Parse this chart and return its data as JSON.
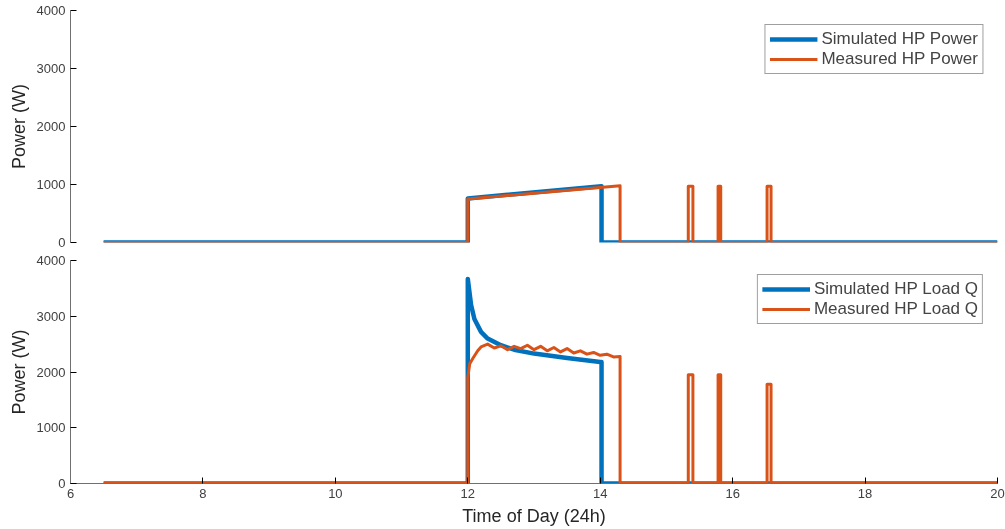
{
  "chart_data": [
    {
      "type": "line",
      "ylabel": "Power (W)",
      "xlim": [
        6,
        20
      ],
      "ylim": [
        0,
        4000
      ],
      "yticks": [
        0,
        1000,
        2000,
        3000,
        4000
      ],
      "tick_labels": "y",
      "grid": false,
      "legend": "top right",
      "line_style": "solid",
      "marker": "none",
      "series": [
        {
          "name": "Simulated HP Power",
          "color": "#0072bd",
          "x": [
            6.5,
            12.0,
            12.0,
            14.02,
            14.02,
            20.0
          ],
          "values": [
            0,
            0,
            760,
            970,
            0,
            0
          ]
        },
        {
          "name": "Measured HP Power",
          "color": "#d95319",
          "x": [
            6.5,
            12.0,
            12.0,
            14.3,
            14.3,
            15.33,
            15.33,
            15.4,
            15.4,
            15.78,
            15.78,
            15.82,
            15.82,
            16.52,
            16.52,
            16.58,
            16.58,
            20.0
          ],
          "values": [
            0,
            0,
            750,
            980,
            0,
            0,
            970,
            970,
            0,
            0,
            970,
            970,
            0,
            0,
            970,
            970,
            0,
            0
          ]
        }
      ]
    },
    {
      "type": "line",
      "xlabel": "Time of Day (24h)",
      "ylabel": "Power (W)",
      "xlim": [
        6,
        20
      ],
      "ylim": [
        0,
        4000
      ],
      "xticks": [
        6,
        8,
        10,
        12,
        14,
        16,
        18,
        20
      ],
      "yticks": [
        0,
        1000,
        2000,
        3000,
        4000
      ],
      "grid": false,
      "legend": "top right",
      "line_style": "solid",
      "marker": "none",
      "series": [
        {
          "name": "Simulated HP Load Q",
          "color": "#0072bd",
          "x": [
            6.5,
            12.0,
            12.0,
            12.05,
            12.1,
            12.2,
            12.3,
            12.5,
            12.7,
            13.0,
            13.5,
            14.0,
            14.02,
            14.02,
            20.0
          ],
          "values": [
            0,
            0,
            3670,
            3200,
            2950,
            2720,
            2600,
            2480,
            2400,
            2330,
            2250,
            2180,
            2180,
            0,
            0
          ]
        },
        {
          "name": "Measured HP Load Q",
          "color": "#d95319",
          "x": [
            6.5,
            12.0,
            12.0,
            12.03,
            12.08,
            12.15,
            12.2,
            12.3,
            12.4,
            12.5,
            12.6,
            12.7,
            12.8,
            12.9,
            13.0,
            13.1,
            13.2,
            13.3,
            13.4,
            13.5,
            13.6,
            13.7,
            13.8,
            13.9,
            14.0,
            14.1,
            14.2,
            14.3,
            14.3,
            15.33,
            15.33,
            15.4,
            15.4,
            15.78,
            15.78,
            15.82,
            15.82,
            16.52,
            16.52,
            16.58,
            16.58,
            20.0
          ],
          "values": [
            0,
            0,
            1900,
            2150,
            2250,
            2380,
            2450,
            2500,
            2430,
            2470,
            2400,
            2460,
            2420,
            2480,
            2400,
            2460,
            2380,
            2440,
            2360,
            2420,
            2340,
            2380,
            2320,
            2350,
            2300,
            2320,
            2270,
            2280,
            0,
            0,
            1950,
            1950,
            0,
            0,
            1950,
            1950,
            0,
            0,
            1780,
            1780,
            0,
            0
          ]
        }
      ]
    }
  ]
}
